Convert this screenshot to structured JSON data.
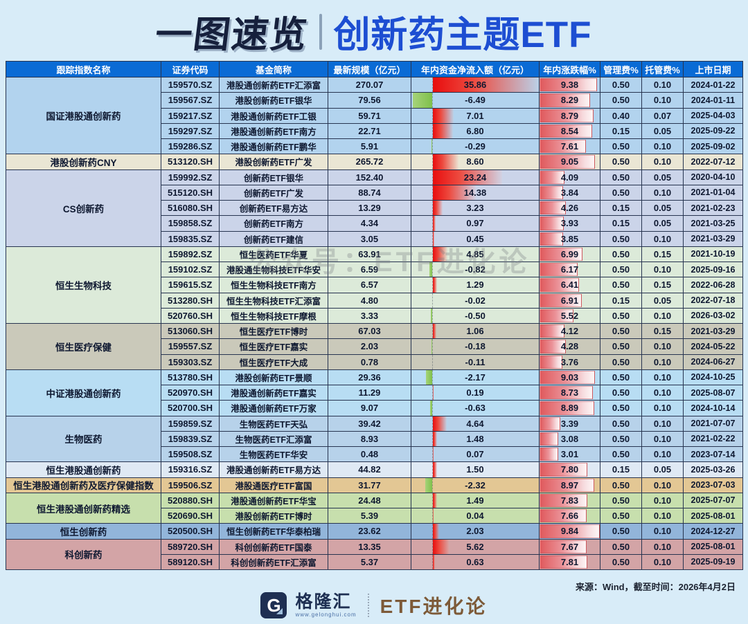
{
  "title": {
    "left": "一图速览",
    "right": "创新药主题ETF"
  },
  "watermark": "公众号：ETF进化论",
  "footer": {
    "source": "来源：Wind，截至时间：2026年4月2日",
    "brand_name": "格隆汇",
    "brand_url": "www.gelonghui.com",
    "account_name": "ETF进化论"
  },
  "colors": {
    "page_bg": "#d8ecf8",
    "header_bg": "#0a6bd5",
    "header_text": "#ffffff",
    "grid_border": "#273450",
    "title_dark": "#16203c",
    "title_blue": "#1d4ed2",
    "positive_bar_red": "#e80d0e",
    "negative_bar_green": "#7fc04b",
    "pct_bar_red": "#e05a5d",
    "brand_brown": "#7d5a38"
  },
  "chart_data": {
    "type": "table",
    "title": "一图速览 | 创新药主题ETF",
    "columns": [
      "跟踪指数名称",
      "证券代码",
      "基金简称",
      "最新规模（亿元）",
      "年内资金净流入额（亿元）",
      "年内涨跌幅%",
      "管理费%",
      "托管费%",
      "上市日期"
    ],
    "bar_columns": {
      "inflow": {
        "style": "diverging-bar",
        "positive_color": "red",
        "negative_color": "green",
        "axis_range": [
          -7,
          36
        ]
      },
      "pct": {
        "style": "data-bar",
        "color": "red-gradient",
        "axis_range": [
          0,
          9.84
        ]
      }
    },
    "groups": [
      {
        "index_name": "国证港股通创新药",
        "row_color": "#b2d3ee",
        "funds": [
          {
            "code": "159570.SZ",
            "name": "港股通创新药ETF汇添富",
            "scale": "270.07",
            "inflow": "35.86",
            "pct": "9.38",
            "mgmt": "0.50",
            "cust": "0.10",
            "date": "2024-01-22"
          },
          {
            "code": "159567.SZ",
            "name": "港股创新药ETF银华",
            "scale": "79.56",
            "inflow": "-6.49",
            "pct": "8.29",
            "mgmt": "0.50",
            "cust": "0.10",
            "date": "2024-01-11"
          },
          {
            "code": "159217.SZ",
            "name": "港股通创新药ETF工银",
            "scale": "59.71",
            "inflow": "7.01",
            "pct": "8.79",
            "mgmt": "0.40",
            "cust": "0.07",
            "date": "2025-04-03"
          },
          {
            "code": "159297.SZ",
            "name": "港股通创新药ETF南方",
            "scale": "22.71",
            "inflow": "6.80",
            "pct": "8.54",
            "mgmt": "0.15",
            "cust": "0.05",
            "date": "2025-09-22"
          },
          {
            "code": "159286.SZ",
            "name": "港股通创新药ETF鹏华",
            "scale": "5.91",
            "inflow": "-0.29",
            "pct": "7.61",
            "mgmt": "0.50",
            "cust": "0.10",
            "date": "2025-09-02"
          }
        ]
      },
      {
        "index_name": "港股创新药CNY",
        "row_color": "#eae6d4",
        "funds": [
          {
            "code": "513120.SH",
            "name": "港股创新药ETF广发",
            "scale": "265.72",
            "inflow": "8.60",
            "pct": "9.05",
            "mgmt": "0.50",
            "cust": "0.10",
            "date": "2022-07-12"
          }
        ]
      },
      {
        "index_name": "CS创新药",
        "row_color": "#cbd4e9",
        "funds": [
          {
            "code": "159992.SZ",
            "name": "创新药ETF银华",
            "scale": "152.40",
            "inflow": "23.24",
            "pct": "4.09",
            "mgmt": "0.50",
            "cust": "0.05",
            "date": "2020-04-10"
          },
          {
            "code": "515120.SH",
            "name": "创新药ETF广发",
            "scale": "88.74",
            "inflow": "14.38",
            "pct": "3.84",
            "mgmt": "0.50",
            "cust": "0.10",
            "date": "2021-01-04"
          },
          {
            "code": "516080.SH",
            "name": "创新药ETF易方达",
            "scale": "13.29",
            "inflow": "3.23",
            "pct": "4.26",
            "mgmt": "0.15",
            "cust": "0.05",
            "date": "2021-02-23"
          },
          {
            "code": "159858.SZ",
            "name": "创新药ETF南方",
            "scale": "4.34",
            "inflow": "0.97",
            "pct": "3.93",
            "mgmt": "0.15",
            "cust": "0.05",
            "date": "2021-03-25"
          },
          {
            "code": "159835.SZ",
            "name": "创新药ETF建信",
            "scale": "3.05",
            "inflow": "0.45",
            "pct": "3.85",
            "mgmt": "0.50",
            "cust": "0.10",
            "date": "2021-03-29"
          }
        ]
      },
      {
        "index_name": "恒生生物科技",
        "row_color": "#dcead9",
        "funds": [
          {
            "code": "159892.SZ",
            "name": "恒生医药ETF华夏",
            "scale": "63.91",
            "inflow": "4.85",
            "pct": "6.99",
            "mgmt": "0.50",
            "cust": "0.15",
            "date": "2021-10-19"
          },
          {
            "code": "159102.SZ",
            "name": "港股通生物科技ETF华安",
            "scale": "6.59",
            "inflow": "-0.82",
            "pct": "6.17",
            "mgmt": "0.50",
            "cust": "0.10",
            "date": "2025-09-16"
          },
          {
            "code": "159615.SZ",
            "name": "恒生生物科技ETF南方",
            "scale": "6.57",
            "inflow": "1.29",
            "pct": "6.41",
            "mgmt": "0.50",
            "cust": "0.15",
            "date": "2022-06-28"
          },
          {
            "code": "513280.SH",
            "name": "恒生生物科技ETF汇添富",
            "scale": "4.80",
            "inflow": "-0.02",
            "pct": "6.91",
            "mgmt": "0.15",
            "cust": "0.05",
            "date": "2022-07-18"
          },
          {
            "code": "520760.SH",
            "name": "恒生生物科技ETF摩根",
            "scale": "3.33",
            "inflow": "-0.50",
            "pct": "5.52",
            "mgmt": "0.50",
            "cust": "0.10",
            "date": "2026-03-02"
          }
        ]
      },
      {
        "index_name": "恒生医疗保健",
        "row_color": "#cac9ba",
        "funds": [
          {
            "code": "513060.SH",
            "name": "恒生医疗ETF博时",
            "scale": "67.03",
            "inflow": "1.06",
            "pct": "4.12",
            "mgmt": "0.50",
            "cust": "0.15",
            "date": "2021-03-29"
          },
          {
            "code": "159557.SZ",
            "name": "恒生医疗ETF嘉实",
            "scale": "2.03",
            "inflow": "-0.18",
            "pct": "4.28",
            "mgmt": "0.50",
            "cust": "0.10",
            "date": "2024-05-22"
          },
          {
            "code": "159303.SZ",
            "name": "恒生医疗ETF大成",
            "scale": "0.78",
            "inflow": "-0.11",
            "pct": "3.76",
            "mgmt": "0.50",
            "cust": "0.10",
            "date": "2024-06-27"
          }
        ]
      },
      {
        "index_name": "中证港股通创新药",
        "row_color": "#b8ddf3",
        "funds": [
          {
            "code": "513780.SH",
            "name": "港股创新药ETF景顺",
            "scale": "29.36",
            "inflow": "-2.17",
            "pct": "9.03",
            "mgmt": "0.50",
            "cust": "0.10",
            "date": "2024-10-25"
          },
          {
            "code": "520970.SH",
            "name": "港股通创新药ETF嘉实",
            "scale": "11.29",
            "inflow": "0.19",
            "pct": "8.73",
            "mgmt": "0.50",
            "cust": "0.10",
            "date": "2025-08-07"
          },
          {
            "code": "520700.SH",
            "name": "港股通创新药ETF万家",
            "scale": "9.07",
            "inflow": "-0.63",
            "pct": "8.89",
            "mgmt": "0.50",
            "cust": "0.10",
            "date": "2024-10-14"
          }
        ]
      },
      {
        "index_name": "生物医药",
        "row_color": "#b7d2ea",
        "funds": [
          {
            "code": "159859.SZ",
            "name": "生物医药ETF天弘",
            "scale": "39.42",
            "inflow": "4.64",
            "pct": "3.39",
            "mgmt": "0.50",
            "cust": "0.10",
            "date": "2021-07-07"
          },
          {
            "code": "159839.SZ",
            "name": "生物医药ETF汇添富",
            "scale": "8.93",
            "inflow": "1.48",
            "pct": "3.08",
            "mgmt": "0.50",
            "cust": "0.10",
            "date": "2021-02-22"
          },
          {
            "code": "159508.SZ",
            "name": "生物医药ETF华安",
            "scale": "0.48",
            "inflow": "0.07",
            "pct": "3.01",
            "mgmt": "0.50",
            "cust": "0.10",
            "date": "2023-07-14"
          }
        ]
      },
      {
        "index_name": "恒生港股通创新药",
        "row_color": "#dfe9f4",
        "funds": [
          {
            "code": "159316.SZ",
            "name": "港股通创新药ETF易方达",
            "scale": "44.82",
            "inflow": "1.50",
            "pct": "7.80",
            "mgmt": "0.15",
            "cust": "0.05",
            "date": "2025-03-26"
          }
        ]
      },
      {
        "index_name": "恒生港股通创新药及医疗保健指数",
        "row_color": "#e3c794",
        "funds": [
          {
            "code": "159506.SZ",
            "name": "港股通医疗ETF富国",
            "scale": "31.77",
            "inflow": "-2.32",
            "pct": "8.97",
            "mgmt": "0.50",
            "cust": "0.10",
            "date": "2023-07-03"
          }
        ]
      },
      {
        "index_name": "恒生港股通创新药精选",
        "row_color": "#c7dfad",
        "funds": [
          {
            "code": "520880.SH",
            "name": "港股通创新药ETF华宝",
            "scale": "24.48",
            "inflow": "1.49",
            "pct": "7.83",
            "mgmt": "0.50",
            "cust": "0.10",
            "date": "2025-07-07"
          },
          {
            "code": "520690.SH",
            "name": "港股创新药ETF博时",
            "scale": "5.39",
            "inflow": "0.04",
            "pct": "7.66",
            "mgmt": "0.50",
            "cust": "0.10",
            "date": "2025-08-01"
          }
        ]
      },
      {
        "index_name": "恒生创新药",
        "row_color": "#92b5da",
        "funds": [
          {
            "code": "520500.SH",
            "name": "恒生创新药ETF华泰柏瑞",
            "scale": "23.62",
            "inflow": "2.03",
            "pct": "9.84",
            "mgmt": "0.50",
            "cust": "0.10",
            "date": "2024-12-27"
          }
        ]
      },
      {
        "index_name": "科创新药",
        "row_color": "#d3a4a6",
        "funds": [
          {
            "code": "589720.SH",
            "name": "科创创新药ETF国泰",
            "scale": "13.35",
            "inflow": "5.62",
            "pct": "7.67",
            "mgmt": "0.50",
            "cust": "0.10",
            "date": "2025-08-01"
          },
          {
            "code": "589120.SH",
            "name": "科创创新药ETF汇添富",
            "scale": "5.37",
            "inflow": "0.63",
            "pct": "7.81",
            "mgmt": "0.50",
            "cust": "0.10",
            "date": "2025-09-19"
          }
        ]
      }
    ]
  }
}
